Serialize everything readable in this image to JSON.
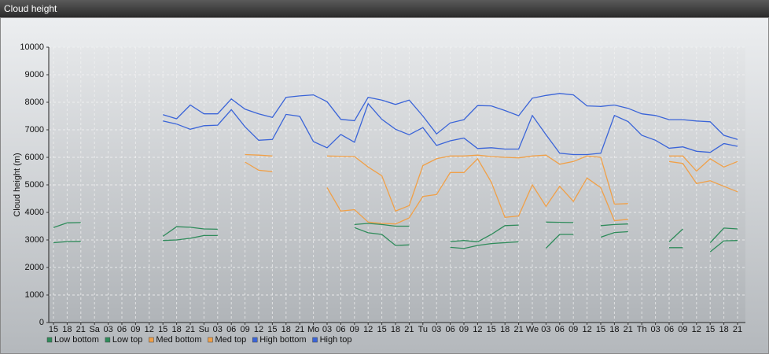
{
  "chart_data": {
    "type": "line",
    "title": "Cloud height",
    "ylabel": "Cloud height (m)",
    "categories": [
      "15",
      "18",
      "21",
      "Sa",
      "03",
      "06",
      "09",
      "12",
      "15",
      "18",
      "21",
      "Su",
      "03",
      "06",
      "09",
      "12",
      "15",
      "18",
      "21",
      "Mo",
      "03",
      "06",
      "09",
      "12",
      "15",
      "18",
      "21",
      "Tu",
      "03",
      "06",
      "09",
      "12",
      "15",
      "18",
      "21",
      "We",
      "03",
      "06",
      "09",
      "12",
      "15",
      "18",
      "21",
      "Th",
      "03",
      "06",
      "09",
      "12",
      "15",
      "18",
      "21"
    ],
    "ylim": [
      0,
      10000
    ],
    "yticks": [
      0,
      1000,
      2000,
      3000,
      4000,
      5000,
      6000,
      7000,
      8000,
      9000,
      10000
    ],
    "grid": true,
    "legend": "bottom",
    "series": [
      {
        "name": "Low bottom",
        "color": "#2e8b5a",
        "values": [
          2900,
          2940,
          2950,
          null,
          null,
          null,
          null,
          null,
          2980,
          3000,
          3060,
          3160,
          3160,
          null,
          null,
          null,
          null,
          null,
          null,
          null,
          null,
          null,
          3450,
          3260,
          3200,
          2800,
          2820,
          null,
          null,
          2730,
          2690,
          2800,
          2870,
          2900,
          2930,
          null,
          2700,
          3200,
          3200,
          null,
          3100,
          3270,
          3300,
          null,
          null,
          2720,
          2720,
          null,
          2570,
          2970,
          2980
        ]
      },
      {
        "name": "Low top",
        "color": "#2e8b5a",
        "values": [
          3450,
          3620,
          3630,
          null,
          null,
          null,
          null,
          null,
          3130,
          3480,
          3460,
          3400,
          3390,
          null,
          null,
          null,
          null,
          null,
          null,
          null,
          null,
          null,
          3560,
          3600,
          3560,
          3500,
          3500,
          null,
          null,
          2940,
          2980,
          2930,
          3200,
          3520,
          3540,
          null,
          3650,
          3640,
          3630,
          null,
          3520,
          3560,
          3580,
          null,
          null,
          2930,
          3400,
          null,
          2900,
          3430,
          3400
        ]
      },
      {
        "name": "Med bottom",
        "color": "#f0a048",
        "values": [
          null,
          null,
          null,
          null,
          null,
          null,
          null,
          null,
          null,
          null,
          null,
          null,
          null,
          null,
          5830,
          5530,
          5480,
          null,
          null,
          null,
          4900,
          4050,
          4100,
          3650,
          3600,
          3580,
          3800,
          4580,
          4650,
          5450,
          5450,
          5950,
          5100,
          3820,
          3870,
          5000,
          4220,
          4950,
          4400,
          5250,
          4900,
          3700,
          3750,
          null,
          null,
          5850,
          5780,
          5050,
          5150,
          4950,
          4750
        ]
      },
      {
        "name": "Med top",
        "color": "#f0a048",
        "values": [
          null,
          null,
          null,
          null,
          null,
          null,
          null,
          null,
          null,
          null,
          null,
          null,
          null,
          null,
          6100,
          6080,
          6050,
          null,
          null,
          null,
          6050,
          6040,
          6030,
          5650,
          5330,
          4050,
          4250,
          5700,
          5950,
          6050,
          6050,
          6080,
          6030,
          6000,
          5980,
          6050,
          6080,
          5750,
          5850,
          6050,
          6000,
          4300,
          4320,
          null,
          null,
          6050,
          6050,
          5500,
          5950,
          5650,
          5850
        ]
      },
      {
        "name": "High bottom",
        "color": "#3a64d8",
        "values": [
          null,
          null,
          null,
          null,
          null,
          null,
          null,
          null,
          7320,
          7210,
          7020,
          7150,
          7170,
          7730,
          7110,
          6620,
          6650,
          7560,
          7490,
          6570,
          6350,
          6830,
          6550,
          7950,
          7380,
          7020,
          6820,
          7080,
          6430,
          6600,
          6700,
          6320,
          6350,
          6300,
          6300,
          7520,
          6820,
          6150,
          6100,
          6100,
          6150,
          7520,
          7300,
          6800,
          6620,
          6330,
          6380,
          6220,
          6180,
          6500,
          6400
        ]
      },
      {
        "name": "High top",
        "color": "#3a64d8",
        "values": [
          null,
          null,
          null,
          null,
          null,
          null,
          null,
          null,
          7550,
          7400,
          7900,
          7580,
          7580,
          8120,
          7750,
          7580,
          7450,
          8180,
          8230,
          8270,
          8020,
          7380,
          7330,
          8180,
          8080,
          7920,
          8080,
          7500,
          6850,
          7250,
          7370,
          7880,
          7870,
          7700,
          7510,
          8150,
          8250,
          8320,
          8270,
          7870,
          7850,
          7900,
          7780,
          7580,
          7520,
          7370,
          7370,
          7320,
          7290,
          6800,
          6650
        ]
      }
    ]
  }
}
